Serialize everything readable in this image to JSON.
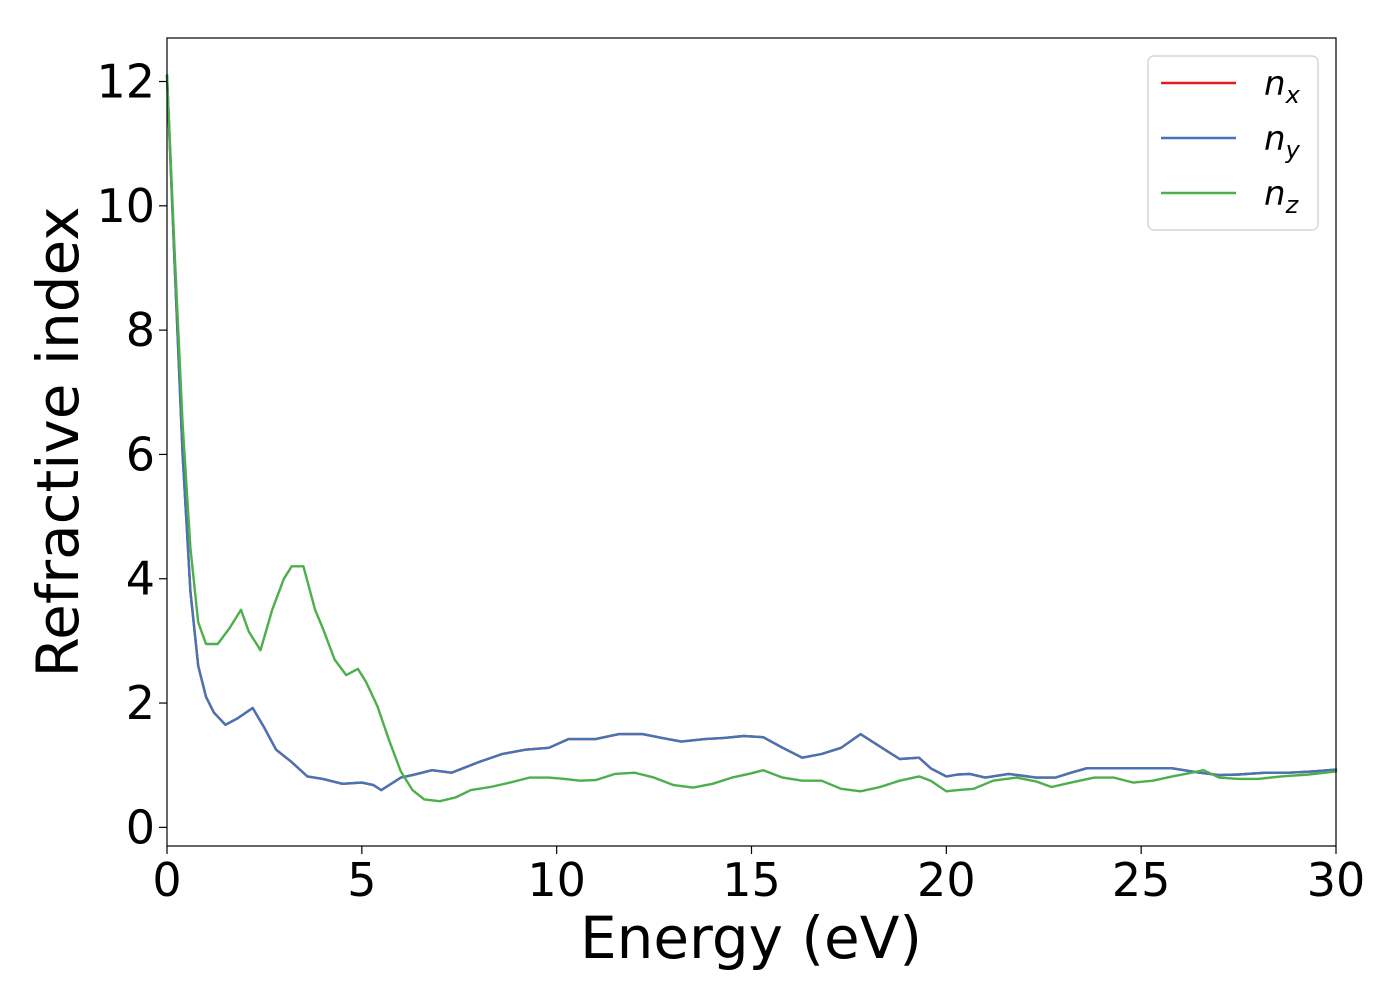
{
  "chart_data": {
    "type": "line",
    "xlabel": "Energy (eV)",
    "ylabel": "Refractive index",
    "xlim": [
      0,
      30
    ],
    "ylim": [
      -0.3,
      12.7
    ],
    "xticks": [
      "0",
      "5",
      "10",
      "15",
      "20",
      "25",
      "30"
    ],
    "yticks": [
      "0",
      "2",
      "4",
      "6",
      "8",
      "10",
      "12"
    ],
    "grid": false,
    "legend_position": "top-right",
    "series": [
      {
        "name": "n",
        "sub": "x",
        "color": "#e41a1c",
        "x": [
          0,
          0.2,
          0.4,
          0.6,
          0.8,
          1.0,
          1.2,
          1.5,
          1.8,
          2.2,
          2.5,
          2.8,
          3.2,
          3.6,
          4.0,
          4.5,
          5.0,
          5.3,
          5.5,
          5.8,
          6.0,
          6.3,
          6.8,
          7.3,
          8.0,
          8.6,
          9.2,
          9.8,
          10.3,
          11.0,
          11.6,
          12.2,
          12.7,
          13.2,
          13.8,
          14.3,
          14.8,
          15.3,
          15.8,
          16.3,
          16.8,
          17.3,
          17.8,
          18.3,
          18.8,
          19.3,
          19.6,
          20.0,
          20.3,
          20.6,
          21.0,
          21.6,
          22.3,
          22.8,
          23.2,
          23.6,
          24.2,
          25.0,
          25.8,
          26.5,
          27.0,
          27.5,
          28.2,
          28.8,
          29.4,
          30.0
        ],
        "y": [
          12.1,
          9.0,
          6.0,
          3.8,
          2.6,
          2.1,
          1.85,
          1.65,
          1.75,
          1.92,
          1.6,
          1.25,
          1.05,
          0.82,
          0.78,
          0.7,
          0.72,
          0.68,
          0.6,
          0.72,
          0.8,
          0.84,
          0.92,
          0.88,
          1.05,
          1.18,
          1.25,
          1.28,
          1.42,
          1.42,
          1.5,
          1.5,
          1.44,
          1.38,
          1.42,
          1.44,
          1.47,
          1.45,
          1.28,
          1.12,
          1.18,
          1.28,
          1.5,
          1.3,
          1.1,
          1.12,
          0.95,
          0.82,
          0.85,
          0.86,
          0.8,
          0.86,
          0.8,
          0.8,
          0.88,
          0.95,
          0.95,
          0.95,
          0.95,
          0.88,
          0.84,
          0.85,
          0.88,
          0.88,
          0.9,
          0.93
        ]
      },
      {
        "name": "n",
        "sub": "y",
        "color": "#4575b4",
        "x": [
          0,
          0.2,
          0.4,
          0.6,
          0.8,
          1.0,
          1.2,
          1.5,
          1.8,
          2.2,
          2.5,
          2.8,
          3.2,
          3.6,
          4.0,
          4.5,
          5.0,
          5.3,
          5.5,
          5.8,
          6.0,
          6.3,
          6.8,
          7.3,
          8.0,
          8.6,
          9.2,
          9.8,
          10.3,
          11.0,
          11.6,
          12.2,
          12.7,
          13.2,
          13.8,
          14.3,
          14.8,
          15.3,
          15.8,
          16.3,
          16.8,
          17.3,
          17.8,
          18.3,
          18.8,
          19.3,
          19.6,
          20.0,
          20.3,
          20.6,
          21.0,
          21.6,
          22.3,
          22.8,
          23.2,
          23.6,
          24.2,
          25.0,
          25.8,
          26.5,
          27.0,
          27.5,
          28.2,
          28.8,
          29.4,
          30.0
        ],
        "y": [
          12.1,
          9.0,
          6.0,
          3.8,
          2.6,
          2.1,
          1.85,
          1.65,
          1.75,
          1.92,
          1.6,
          1.25,
          1.05,
          0.82,
          0.78,
          0.7,
          0.72,
          0.68,
          0.6,
          0.72,
          0.8,
          0.84,
          0.92,
          0.88,
          1.05,
          1.18,
          1.25,
          1.28,
          1.42,
          1.42,
          1.5,
          1.5,
          1.44,
          1.38,
          1.42,
          1.44,
          1.47,
          1.45,
          1.28,
          1.12,
          1.18,
          1.28,
          1.5,
          1.3,
          1.1,
          1.12,
          0.95,
          0.82,
          0.85,
          0.86,
          0.8,
          0.86,
          0.8,
          0.8,
          0.88,
          0.95,
          0.95,
          0.95,
          0.95,
          0.88,
          0.84,
          0.85,
          0.88,
          0.88,
          0.9,
          0.93
        ]
      },
      {
        "name": "n",
        "sub": "z",
        "color": "#4daf4a",
        "x": [
          0,
          0.2,
          0.4,
          0.6,
          0.8,
          1.0,
          1.3,
          1.6,
          1.9,
          2.1,
          2.4,
          2.7,
          3.0,
          3.2,
          3.5,
          3.8,
          4.0,
          4.3,
          4.6,
          4.9,
          5.1,
          5.4,
          5.7,
          6.0,
          6.3,
          6.6,
          7.0,
          7.4,
          7.8,
          8.3,
          8.8,
          9.3,
          9.8,
          10.2,
          10.6,
          11.0,
          11.5,
          12.0,
          12.5,
          13.0,
          13.5,
          14.0,
          14.5,
          15.0,
          15.3,
          15.8,
          16.3,
          16.8,
          17.3,
          17.8,
          18.3,
          18.8,
          19.3,
          19.6,
          20.0,
          20.3,
          20.7,
          21.2,
          21.8,
          22.3,
          22.7,
          23.2,
          23.8,
          24.3,
          24.8,
          25.3,
          25.8,
          26.3,
          26.6,
          27.0,
          27.5,
          28.0,
          28.6,
          29.3,
          30.0
        ],
        "y": [
          12.1,
          9.2,
          6.5,
          4.5,
          3.3,
          2.95,
          2.95,
          3.2,
          3.5,
          3.15,
          2.85,
          3.5,
          4.0,
          4.2,
          4.2,
          3.5,
          3.2,
          2.7,
          2.45,
          2.55,
          2.35,
          1.95,
          1.4,
          0.9,
          0.6,
          0.45,
          0.42,
          0.48,
          0.6,
          0.65,
          0.72,
          0.8,
          0.8,
          0.78,
          0.75,
          0.76,
          0.86,
          0.88,
          0.8,
          0.68,
          0.64,
          0.7,
          0.8,
          0.87,
          0.92,
          0.8,
          0.75,
          0.75,
          0.62,
          0.58,
          0.65,
          0.75,
          0.82,
          0.75,
          0.58,
          0.6,
          0.62,
          0.75,
          0.8,
          0.74,
          0.65,
          0.72,
          0.8,
          0.8,
          0.72,
          0.75,
          0.82,
          0.88,
          0.92,
          0.8,
          0.78,
          0.78,
          0.82,
          0.85,
          0.9
        ]
      }
    ]
  }
}
